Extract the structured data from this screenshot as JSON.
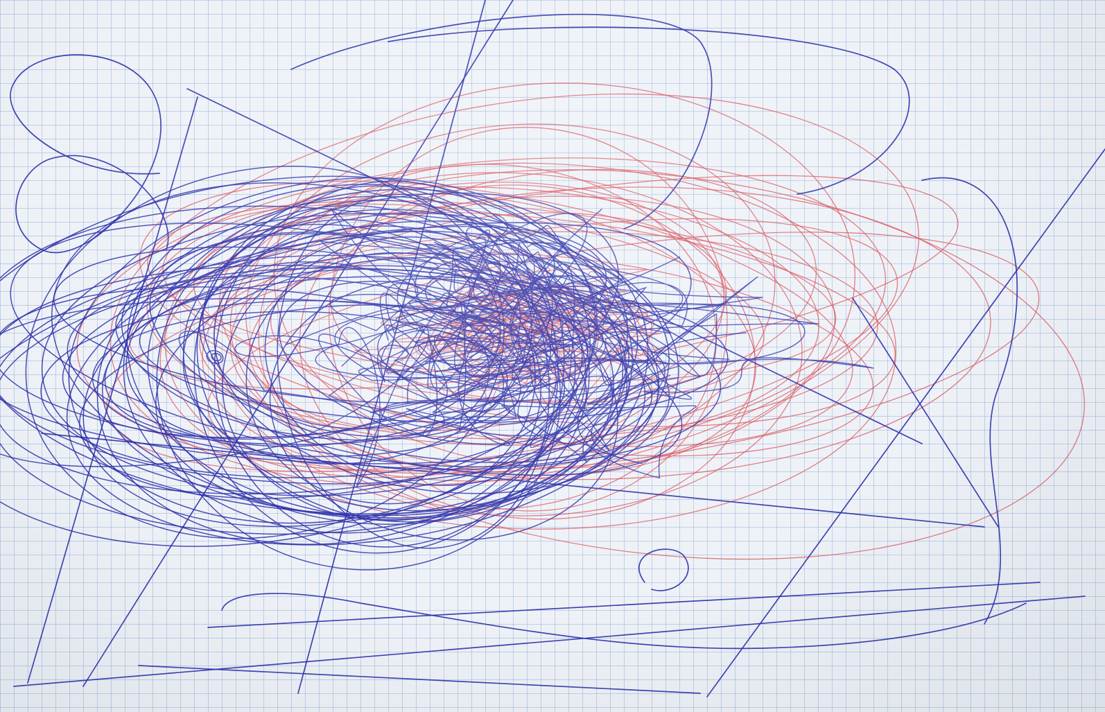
{
  "scene": {
    "subject": "",
    "ink_colors": {
      "blue": "#2b2fa8",
      "red": "#d9505a"
    },
    "paper_color": "#eef2f7",
    "grid_color": "#8fa7cf"
  }
}
